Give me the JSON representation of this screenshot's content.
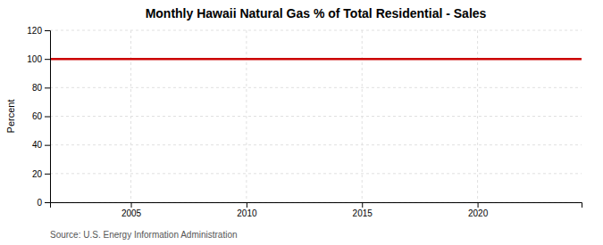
{
  "chart_data": {
    "type": "line",
    "title": "Monthly Hawaii Natural Gas % of Total Residential - Sales",
    "ylabel": "Percent",
    "source": "Source: U.S. Energy Information Administration",
    "x": [
      2001.5,
      2024.5
    ],
    "values": [
      100.0,
      100.0
    ],
    "color": "#cc0000",
    "xlim": [
      2001.5,
      2024.5
    ],
    "xticks": [
      2005,
      2010,
      2015,
      2020
    ],
    "ylim": [
      0,
      120
    ],
    "yticks": [
      0,
      20,
      40,
      60,
      80,
      100,
      120
    ],
    "grid": true
  }
}
